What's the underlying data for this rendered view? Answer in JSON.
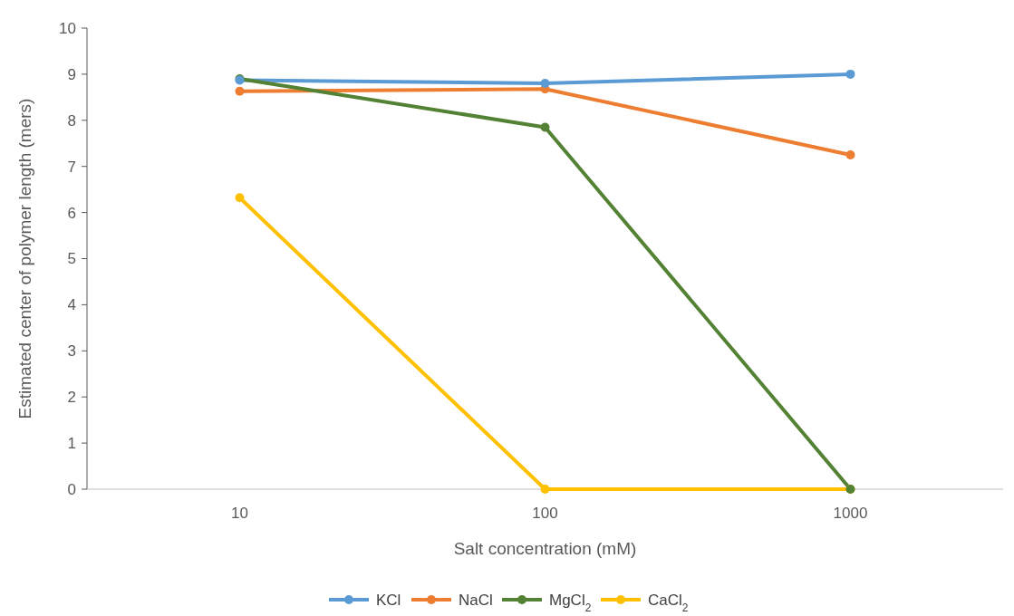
{
  "chart_data": {
    "type": "line",
    "xlabel": "Salt concentration (mM)",
    "ylabel": "Estimated center of polymer length (mers)",
    "categories": [
      "10",
      "100",
      "1000"
    ],
    "ylim": [
      0,
      10
    ],
    "yticks": [
      0,
      1,
      2,
      3,
      4,
      5,
      6,
      7,
      8,
      9,
      10
    ],
    "grid": false,
    "legend": "bottom",
    "marker": "circle",
    "series": [
      {
        "name": "KCl",
        "color": "#5b9bd5",
        "values": [
          8.87,
          8.8,
          9.0
        ]
      },
      {
        "name": "NaCl",
        "color": "#ed7d31",
        "values": [
          8.63,
          8.68,
          7.25
        ]
      },
      {
        "name": "MgCl$_{2}$",
        "color": "#548235",
        "values": [
          8.9,
          7.85,
          0
        ]
      },
      {
        "name": "CaCl$_{2}$",
        "color": "#ffc000",
        "values": [
          6.32,
          0,
          0
        ]
      }
    ]
  }
}
